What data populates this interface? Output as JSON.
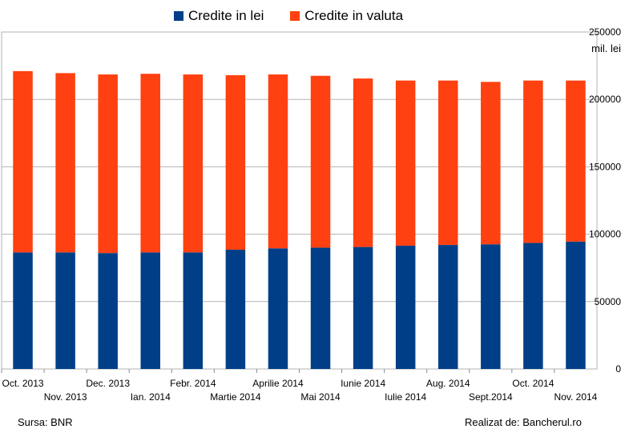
{
  "colors": {
    "lei": "#003f87",
    "valuta": "#ff4010",
    "grid": "#b3b3b3",
    "axis": "#8c8c8c"
  },
  "chart_data": {
    "type": "bar",
    "stacked": true,
    "categories": [
      "Oct. 2013",
      "Nov. 2013",
      "Dec. 2013",
      "Ian. 2014",
      "Febr. 2014",
      "Martie 2014",
      "Aprilie 2014",
      "Mai 2014",
      "Iunie 2014",
      "Iulie 2014",
      "Aug. 2014",
      "Sept.2014",
      "Oct. 2014",
      "Nov. 2014"
    ],
    "series": [
      {
        "name": "Credite in lei",
        "values": [
          86500,
          86500,
          86000,
          86500,
          86500,
          88500,
          89500,
          90000,
          90500,
          91500,
          92000,
          92500,
          93500,
          94500
        ]
      },
      {
        "name": "Credite in valuta",
        "values": [
          134500,
          133000,
          132500,
          132500,
          132000,
          129500,
          129000,
          127500,
          125000,
          122500,
          122000,
          120500,
          120500,
          119500
        ]
      }
    ],
    "ylim": [
      0,
      250000
    ],
    "yticks": [
      0,
      50000,
      100000,
      150000,
      200000,
      250000
    ],
    "yunit": "mil. lei",
    "y_axis_side": "right",
    "grid": true,
    "legend_position": "top"
  },
  "footer": {
    "source": "Sursa: BNR",
    "credit": "Realizat de: Bancherul.ro"
  }
}
